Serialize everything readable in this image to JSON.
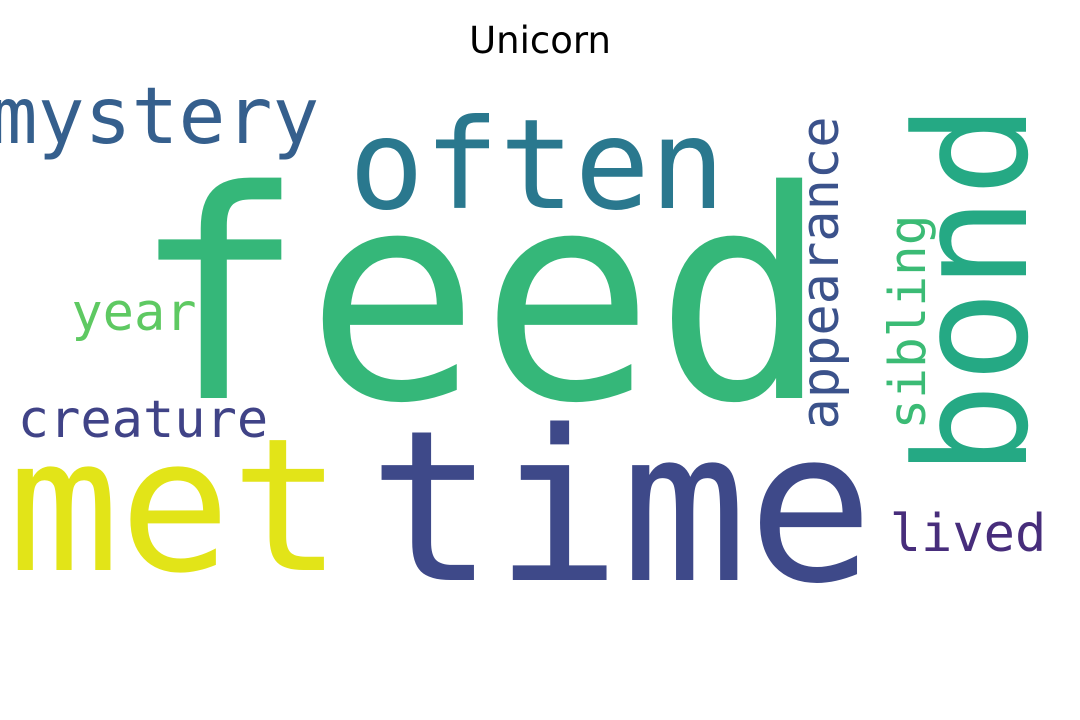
{
  "chart_data": {
    "type": "wordcloud",
    "title": "Unicorn",
    "words": [
      {
        "text": "feed",
        "color": "#35b779"
      },
      {
        "text": "time",
        "color": "#3e4989"
      },
      {
        "text": "met",
        "color": "#e2e418"
      },
      {
        "text": "often",
        "color": "#2a788e"
      },
      {
        "text": "bond",
        "color": "#25a984"
      },
      {
        "text": "mystery",
        "color": "#355f8d"
      },
      {
        "text": "appearance",
        "color": "#3b528b"
      },
      {
        "text": "sibling",
        "color": "#3bbb75"
      },
      {
        "text": "creature",
        "color": "#404387"
      },
      {
        "text": "year",
        "color": "#5ec962"
      },
      {
        "text": "lived",
        "color": "#472d7b"
      }
    ]
  }
}
